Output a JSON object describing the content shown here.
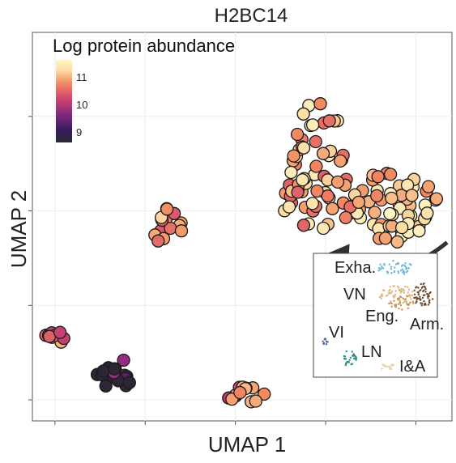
{
  "chart_data": {
    "type": "scatter",
    "title": "H2BC14",
    "xlabel": "UMAP 1",
    "ylabel": "UMAP 2",
    "grid": true,
    "legend": {
      "title": "Log protein abundance",
      "placement": "top-left",
      "ticks": [
        "9",
        "10",
        "11"
      ],
      "range": [
        8.5,
        11.8
      ],
      "colormap": [
        "#2a2a2a",
        "#3b1a66",
        "#8c2a81",
        "#d54a6c",
        "#f38c61",
        "#fde0a6",
        "#fff5c7"
      ]
    },
    "clusters": [
      {
        "center": [
          6.2,
          6.9
        ],
        "rx": 0.75,
        "ry": 0.8,
        "n": 28,
        "value_mean": 11.0
      },
      {
        "center": [
          8.0,
          5.7
        ],
        "rx": 1.0,
        "ry": 0.7,
        "n": 60,
        "value_mean": 11.2
      },
      {
        "center": [
          6.4,
          5.8
        ],
        "rx": 0.9,
        "ry": 0.55,
        "n": 40,
        "value_mean": 10.9
      },
      {
        "center": [
          3.0,
          5.3
        ],
        "rx": 0.35,
        "ry": 0.35,
        "n": 16,
        "value_mean": 10.6
      },
      {
        "center": [
          0.5,
          3.2
        ],
        "rx": 0.25,
        "ry": 0.15,
        "n": 9,
        "value_mean": 10.5
      },
      {
        "center": [
          1.8,
          2.5
        ],
        "rx": 0.45,
        "ry": 0.3,
        "n": 22,
        "value_mean": 9.4
      },
      {
        "center": [
          4.7,
          2.1
        ],
        "rx": 0.5,
        "ry": 0.15,
        "n": 14,
        "value_mean": 10.4
      }
    ],
    "xlim": [
      0,
      9.3
    ],
    "ylim": [
      1.6,
      9.0
    ],
    "arrow": {
      "from": [
        9.3,
        5.0
      ],
      "to": [
        6.6,
        4.6
      ]
    },
    "inset": {
      "labels": [
        "Exha.",
        "VN",
        "Eng.",
        "Arm.",
        "VI",
        "LN",
        "I&A"
      ],
      "groups": [
        {
          "label": "Exha.",
          "color": "#6cb8d6"
        },
        {
          "label": "VN",
          "color": "#e0b680"
        },
        {
          "label": "Eng.",
          "color": "#c98f55"
        },
        {
          "label": "Arm.",
          "color": "#6b4a32"
        },
        {
          "label": "VI",
          "color": "#4a6b99"
        },
        {
          "label": "LN",
          "color": "#2f8a8a"
        },
        {
          "label": "I&A",
          "color": "#e8d2a8"
        }
      ]
    }
  }
}
